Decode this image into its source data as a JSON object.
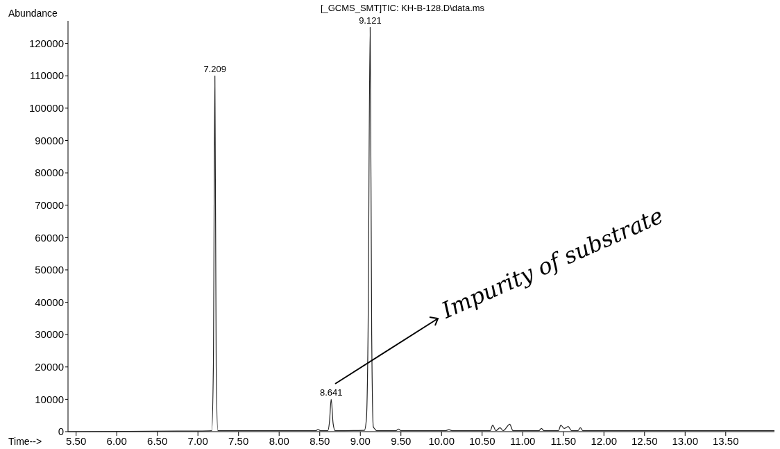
{
  "chart_data": {
    "type": "line",
    "title": "[_GCMS_SMT]TIC: KH-B-128.D\\data.ms",
    "xlabel": "Time-->",
    "ylabel": "Abundance",
    "xlim": [
      5.4,
      14.1
    ],
    "ylim": [
      0,
      127000
    ],
    "xticks": [
      {
        "value": 5.5,
        "label": "5.50"
      },
      {
        "value": 6,
        "label": "6.00"
      },
      {
        "value": 6.5,
        "label": "6.50"
      },
      {
        "value": 7,
        "label": "7.00"
      },
      {
        "value": 7.5,
        "label": "7.50"
      },
      {
        "value": 8,
        "label": "8.00"
      },
      {
        "value": 8.5,
        "label": "8.50"
      },
      {
        "value": 9,
        "label": "9.00"
      },
      {
        "value": 9.5,
        "label": "9.50"
      },
      {
        "value": 10,
        "label": "10.00"
      },
      {
        "value": 10.5,
        "label": "10.50"
      },
      {
        "value": 11,
        "label": "11.00"
      },
      {
        "value": 11.5,
        "label": "11.50"
      },
      {
        "value": 12,
        "label": "12.00"
      },
      {
        "value": 12.5,
        "label": "12.50"
      },
      {
        "value": 13,
        "label": "13.00"
      },
      {
        "value": 13.5,
        "label": "13.50"
      }
    ],
    "yticks": [
      0,
      10000,
      20000,
      30000,
      40000,
      50000,
      60000,
      70000,
      80000,
      90000,
      100000,
      110000,
      120000
    ],
    "grid": false,
    "series": [
      {
        "color": "#222222",
        "x": [
          5.4,
          7.0,
          7.17,
          7.19,
          7.209,
          7.225,
          7.245,
          8.45,
          8.48,
          8.51,
          8.6,
          8.62,
          8.641,
          8.665,
          8.69,
          9.05,
          9.075,
          9.095,
          9.121,
          9.14,
          9.16,
          9.18,
          9.2,
          9.44,
          9.47,
          9.5,
          10.05,
          10.09,
          10.13,
          10.6,
          10.63,
          10.67,
          10.72,
          10.76,
          10.84,
          10.88,
          11.2,
          11.23,
          11.26,
          11.44,
          11.47,
          11.51,
          11.56,
          11.6,
          11.68,
          11.71,
          11.74,
          14.1
        ],
        "values": [
          0,
          200,
          300,
          20000,
          110000,
          20000,
          300,
          300,
          700,
          300,
          300,
          3000,
          10000,
          2500,
          300,
          400,
          4000,
          30000,
          125000,
          30000,
          1500,
          800,
          300,
          300,
          800,
          300,
          300,
          600,
          300,
          300,
          2000,
          300,
          1200,
          300,
          2300,
          300,
          300,
          1000,
          300,
          300,
          2000,
          1000,
          1600,
          300,
          300,
          1200,
          300,
          300
        ]
      }
    ],
    "annotations": [
      {
        "text": "7.209",
        "x": 7.209,
        "y": 110000
      },
      {
        "text": "9.121",
        "x": 9.121,
        "y": 125000
      },
      {
        "text": "8.641",
        "x": 8.641,
        "y": 10000
      },
      "Impurity of substrate"
    ]
  }
}
